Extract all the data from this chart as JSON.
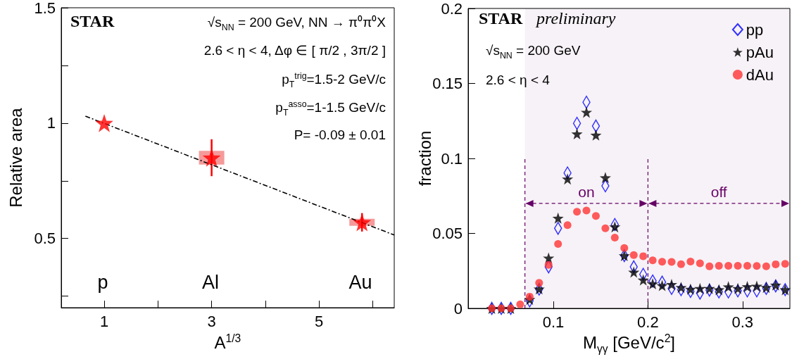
{
  "chart_data": [
    {
      "type": "scatter",
      "xlabel": "A$^{1/3}$",
      "ylabel": "Relative area",
      "annotations": [
        "STAR",
        "√s$_{NN}$ = 200 GeV, NN → π⁰π⁰X",
        "2.6 < η < 4, Δφ ∈ [ π/2 , 3π/2 ]",
        "p$_{T}$$^{trig}$=1.5-2 GeV/c",
        "p$_{T}$$^{asso}$=1-1.5 GeV/c",
        "P= -0.09 ± 0.01",
        "p",
        "Al",
        "Au"
      ],
      "x": [
        1,
        3,
        5.8
      ],
      "series": [
        {
          "type": "bar",
          "color": "#f59a9a",
          "base": [
            null,
            0.82,
            0.555
          ],
          "values": [
            null,
            0.06,
            0.03
          ]
        },
        {
          "type": "scatter",
          "color": "#ff0000",
          "marker": "star",
          "values": [
            1,
            0.85,
            0.57
          ],
          "errors": [
            null,
            0.08,
            0.04
          ]
        },
        {
          "type": "line",
          "color": "#000000",
          "line_style": "dashed",
          "marker": "none",
          "x": [
            0.65,
            6.4
          ],
          "values": [
            1.03,
            0.515
          ]
        }
      ],
      "xlim": [
        0.2,
        6.4
      ],
      "xticks": [
        1,
        {
          "value": 2,
          "label": null
        },
        3,
        {
          "value": 4,
          "label": null
        },
        5,
        {
          "value": 6,
          "label": null
        }
      ],
      "ylim": [
        0.2,
        1.5
      ],
      "yticks": [
        {
          "value": 0.25,
          "label": null
        },
        0.5,
        {
          "value": 0.75,
          "label": null
        },
        1,
        {
          "value": 1.25,
          "label": null
        },
        1.5
      ],
      "grid": false,
      "legend": false
    },
    {
      "type": "scatter",
      "xlabel": "M$_{γγ}$ [GeV/c$^{2}$]",
      "ylabel": "fraction",
      "annotations": [
        "STAR",
        "preliminary",
        "√s$_{NN}$ = 200 GeV",
        "2.6 < η < 4"
      ],
      "x": [
        0.035,
        0.045,
        0.055,
        0.065,
        0.075,
        0.085,
        0.095,
        0.105,
        0.115,
        0.125,
        0.135,
        0.145,
        0.155,
        0.165,
        0.175,
        0.185,
        0.195,
        0.205,
        0.215,
        0.225,
        0.235,
        0.245,
        0.255,
        0.265,
        0.275,
        0.285,
        0.295,
        0.305,
        0.315,
        0.325,
        0.335,
        0.345
      ],
      "series": [
        {
          "name": "pp",
          "color": "#0000ff",
          "marker": "diamond",
          "values": [
            0,
            0,
            0,
            null,
            0.005,
            0.0128,
            0.0277,
            0.0534,
            0.0903,
            0.1234,
            0.1375,
            0.1216,
            0.0817,
            0.0559,
            0.0352,
            0.0277,
            0.0227,
            0.0183,
            0.0175,
            0.0133,
            0.0125,
            0.0113,
            0.0102,
            0.0122,
            0.011,
            0.011,
            0.0117,
            0.0117,
            0.0117,
            0.0133,
            0.015,
            0.0125
          ]
        },
        {
          "name": "pAu",
          "color": "#000000",
          "marker": "star",
          "values": [
            0,
            0,
            0,
            null,
            0.006,
            0.013,
            0.0336,
            0.0602,
            0.0863,
            0.1164,
            0.1308,
            0.1156,
            0.0872,
            0.0544,
            0.0352,
            0.0242,
            0.019,
            0.0164,
            0.0152,
            0.016,
            0.014,
            0.0128,
            0.0133,
            0.0133,
            0.0125,
            0.0144,
            0.0133,
            0.0145,
            0.0148,
            0.014,
            0.0156,
            0.0125
          ]
        },
        {
          "name": "dAu",
          "color": "#ff3333",
          "marker": "circle",
          "values": [
            0,
            0,
            0,
            0.0027,
            0.0078,
            0.017,
            0.029,
            0.043,
            0.0555,
            0.0644,
            0.0653,
            0.0616,
            0.0534,
            0.0472,
            0.0403,
            0.0356,
            0.0348,
            0.032,
            0.0311,
            0.031,
            0.0295,
            0.0312,
            0.03,
            0.028,
            0.0284,
            0.0284,
            0.0284,
            0.0284,
            0.0283,
            0.028,
            0.0294,
            0.0297
          ]
        }
      ],
      "ref_lines": [
        {
          "axis": "x",
          "value": 0.07,
          "color": "#660066",
          "line_style": "dashed"
        },
        {
          "axis": "x",
          "value": 0.2,
          "color": "#660066",
          "line_style": "dashed"
        }
      ],
      "bands": [
        {
          "axis": "x",
          "from": 0.07,
          "to": 0.2,
          "label": "on",
          "color": "#660066"
        },
        {
          "axis": "x",
          "from": 0.2,
          "to": 0.35,
          "label": "off",
          "color": "#660066"
        }
      ],
      "xlim": [
        0.01,
        0.35
      ],
      "xticks": [
        0.1,
        0.2,
        0.3
      ],
      "ylim": [
        0,
        0.2
      ],
      "yticks": [
        0,
        0.05,
        0.1,
        0.15,
        0.2
      ],
      "grid": false,
      "legend": "top right"
    }
  ]
}
